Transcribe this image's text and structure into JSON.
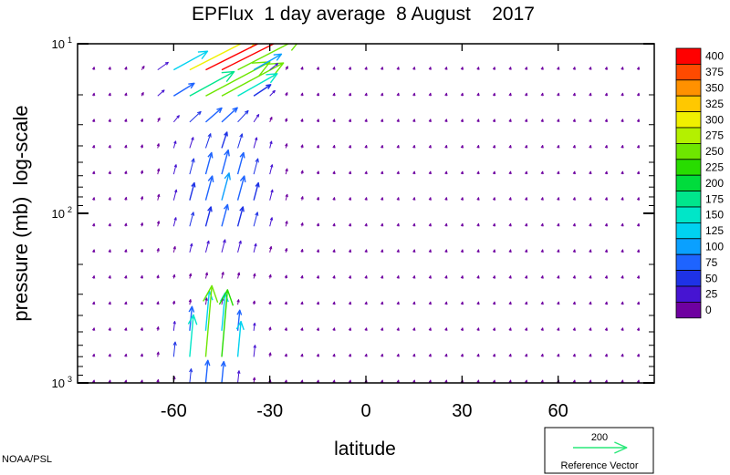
{
  "chart_data": {
    "type": "vector-field",
    "title": "EPFlux  1 day average  8 August    2017",
    "xlabel": "latitude",
    "ylabel": "pressure (mb)  log-scale",
    "xlim": [
      -90,
      90
    ],
    "ylim": [
      1000,
      10
    ],
    "yscale": "log",
    "x_ticks": [
      -60,
      -30,
      0,
      30,
      60
    ],
    "x_tick_labels": [
      "-60",
      "-30",
      "0",
      "30",
      "60"
    ],
    "y_ticks": [
      10,
      100,
      1000
    ],
    "y_tick_labels": [
      {
        "base": "10",
        "exp": "1"
      },
      {
        "base": "10",
        "exp": "2"
      },
      {
        "base": "10",
        "exp": "3"
      }
    ],
    "grid": false,
    "colorbar": {
      "levels": [
        400,
        375,
        350,
        325,
        300,
        275,
        250,
        225,
        200,
        175,
        150,
        125,
        100,
        75,
        50,
        25,
        0
      ],
      "colors": [
        "#ff0000",
        "#ff4a00",
        "#ff9100",
        "#ffc800",
        "#f0f000",
        "#b4f000",
        "#6ee600",
        "#28dc00",
        "#00dc3c",
        "#00e68c",
        "#00e6c8",
        "#00d2f0",
        "#0aa0ff",
        "#1e64ff",
        "#1e32e6",
        "#4614d2",
        "#6e00a0"
      ]
    },
    "reference_vector": {
      "value": 200,
      "label": "Reference Vector",
      "color": "#28e878"
    },
    "credit": "NOAA/PSL"
  }
}
